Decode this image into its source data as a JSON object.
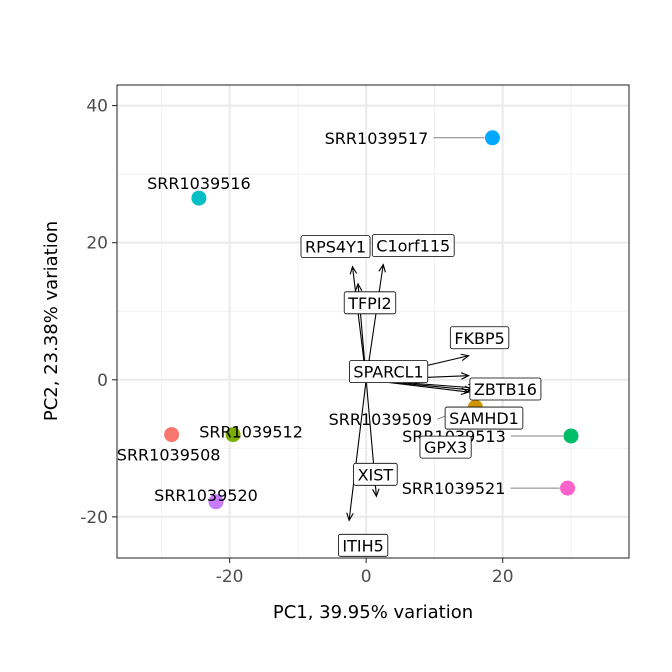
{
  "chart_data": {
    "type": "scatter",
    "title": "",
    "xlabel": "PC1, 39.95% variation",
    "ylabel": "PC2, 23.38% variation",
    "xlim": [
      -36.5,
      38.5
    ],
    "ylim": [
      -26,
      43
    ],
    "xticks": [
      -20,
      0,
      20
    ],
    "yticks": [
      -20,
      0,
      20,
      40
    ],
    "grid": true,
    "legend": "none",
    "samples": [
      {
        "name": "SRR1039508",
        "x": -28.5,
        "y": -8.0,
        "color": "#F8766D"
      },
      {
        "name": "SRR1039509",
        "x": 16.0,
        "y": -4.0,
        "color": "#CD9600"
      },
      {
        "name": "SRR1039512",
        "x": -19.5,
        "y": -8.0,
        "color": "#7CAE00"
      },
      {
        "name": "SRR1039513",
        "x": 30.0,
        "y": -8.2,
        "color": "#00BE67"
      },
      {
        "name": "SRR1039516",
        "x": -24.5,
        "y": 26.5,
        "color": "#00BFC4"
      },
      {
        "name": "SRR1039517",
        "x": 18.5,
        "y": 35.3,
        "color": "#00A9FF"
      },
      {
        "name": "SRR1039520",
        "x": -22.0,
        "y": -17.8,
        "color": "#C77CFF"
      },
      {
        "name": "SRR1039521",
        "x": 29.5,
        "y": -15.8,
        "color": "#FF61CC"
      }
    ],
    "loadings": [
      {
        "name": "RPS4Y1",
        "x": -2.0,
        "y": 16.5
      },
      {
        "name": "C1orf115",
        "x": 2.5,
        "y": 16.8
      },
      {
        "name": "TFPI2",
        "x": -1.2,
        "y": 14.0
      },
      {
        "name": "FKBP5",
        "x": 15.0,
        "y": 3.5
      },
      {
        "name": "SPARCL1",
        "x": 15.0,
        "y": 0.6
      },
      {
        "name": "ZBTB16",
        "x": 16.0,
        "y": -1.2
      },
      {
        "name": "SAMHD1",
        "x": 15.5,
        "y": -1.5
      },
      {
        "name": "GPX3",
        "x": 15.0,
        "y": -1.8
      },
      {
        "name": "XIST",
        "x": 1.5,
        "y": -17.0
      },
      {
        "name": "ITIH5",
        "x": -2.5,
        "y": -20.5
      }
    ]
  }
}
